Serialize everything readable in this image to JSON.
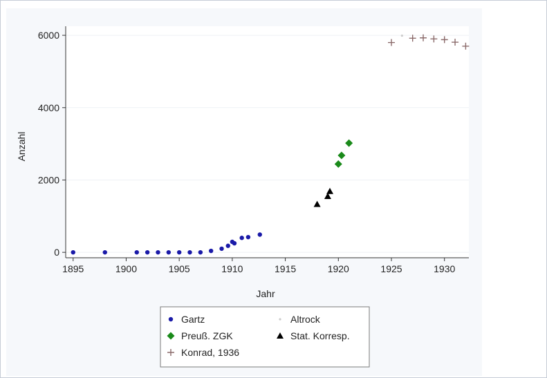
{
  "chart_data": {
    "type": "scatter",
    "title": "",
    "xlabel": "Jahr",
    "ylabel": "Anzahl",
    "xlim": [
      1894.3,
      1932.3
    ],
    "ylim": [
      -150,
      6250
    ],
    "xticks": [
      1895,
      1900,
      1905,
      1910,
      1915,
      1920,
      1925,
      1930
    ],
    "yticks": [
      0,
      2000,
      4000,
      6000
    ],
    "grid": "horizontal",
    "legend_position": "bottom",
    "series": [
      {
        "name": "Gartz",
        "marker": "circle",
        "color": "#1a1aa8",
        "points": [
          [
            1895,
            0
          ],
          [
            1898,
            0
          ],
          [
            1901,
            0
          ],
          [
            1902,
            0
          ],
          [
            1903,
            0
          ],
          [
            1904,
            0
          ],
          [
            1905,
            0
          ],
          [
            1906,
            0
          ],
          [
            1907,
            0
          ],
          [
            1908,
            40
          ],
          [
            1909,
            100
          ],
          [
            1909.6,
            180
          ],
          [
            1910,
            290
          ],
          [
            1910.2,
            250
          ],
          [
            1910.9,
            400
          ],
          [
            1911.5,
            420
          ],
          [
            1912.6,
            490
          ]
        ]
      },
      {
        "name": "Altrock",
        "marker": "dot",
        "color": "#cccccc",
        "points": [
          [
            1926,
            5990
          ]
        ]
      },
      {
        "name": "Preuß. ZGK",
        "marker": "diamond",
        "color": "#1a8a1a",
        "points": [
          [
            1920,
            2440
          ],
          [
            1920.3,
            2680
          ],
          [
            1921,
            3020
          ]
        ]
      },
      {
        "name": "Stat. Korresp.",
        "marker": "triangle",
        "color": "#000000",
        "points": [
          [
            1918,
            1330
          ],
          [
            1919,
            1550
          ],
          [
            1919.2,
            1690
          ]
        ]
      },
      {
        "name": "Konrad, 1936",
        "marker": "plus",
        "color": "#8a6a6a",
        "points": [
          [
            1925,
            5800
          ],
          [
            1927,
            5920
          ],
          [
            1928,
            5930
          ],
          [
            1929,
            5900
          ],
          [
            1930,
            5880
          ],
          [
            1931,
            5810
          ],
          [
            1932,
            5700
          ]
        ]
      }
    ]
  }
}
